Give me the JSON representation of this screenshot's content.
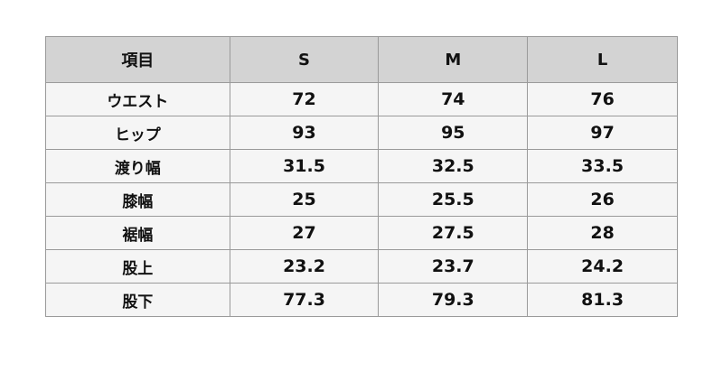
{
  "table": {
    "headers": [
      "項目",
      "S",
      "M",
      "L"
    ],
    "rows": [
      [
        "ウエスト",
        "72",
        "74",
        "76"
      ],
      [
        "ヒップ",
        "93",
        "95",
        "97"
      ],
      [
        "渡り幅",
        "31.5",
        "32.5",
        "33.5"
      ],
      [
        "膝幅",
        "25",
        "25.5",
        "26"
      ],
      [
        "裾幅",
        "27",
        "27.5",
        "28"
      ],
      [
        "股上",
        "23.2",
        "23.7",
        "24.2"
      ],
      [
        "股下",
        "77.3",
        "79.3",
        "81.3"
      ]
    ]
  },
  "colors": {
    "header_bg": "#d3d3d3",
    "row_bg": "#f5f5f5",
    "border": "#9a9a9a"
  }
}
